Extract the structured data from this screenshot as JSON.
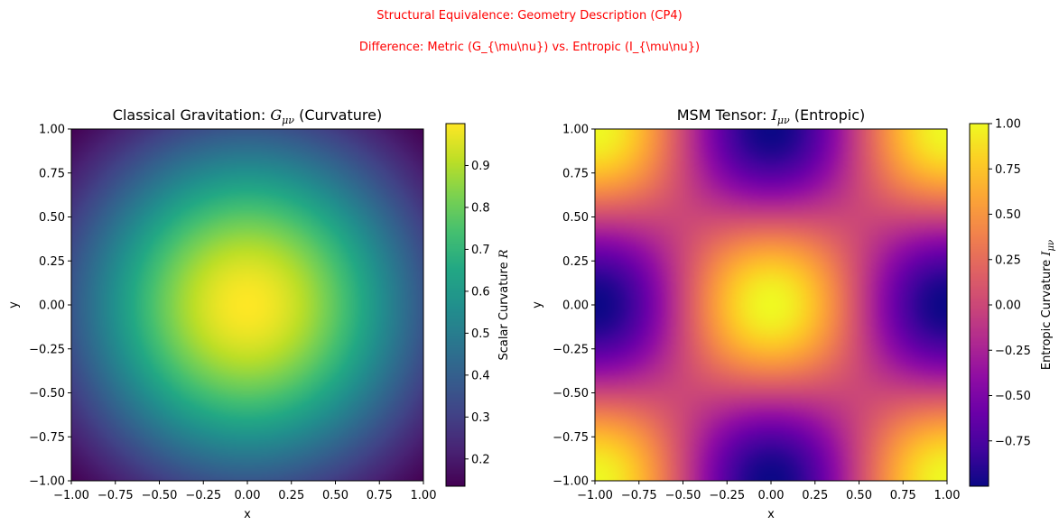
{
  "suptitle": {
    "line1": "Structural Equivalence: Geometry Description (CP4)",
    "line2": "Difference: Metric (G_{\\mu\\nu}) vs. Entropic (I_{\\mu\\nu})",
    "color": "#ff0000"
  },
  "chart_data": [
    {
      "type": "heatmap",
      "title_prefix": "Classical Gravitation: ",
      "title_symbol": "G",
      "title_sub": "μν",
      "title_suffix": " (Curvature)",
      "xlabel": "x",
      "ylabel": "y",
      "xlim": [
        -1.0,
        1.0
      ],
      "ylim": [
        -1.0,
        1.0
      ],
      "xticks": [
        "−1.00",
        "−0.75",
        "−0.50",
        "−0.25",
        "0.00",
        "0.25",
        "0.50",
        "0.75",
        "1.00"
      ],
      "yticks": [
        "−1.00",
        "−0.75",
        "−0.50",
        "−0.25",
        "0.00",
        "0.25",
        "0.50",
        "0.75",
        "1.00"
      ],
      "field": "exp(-(x^2+y^2))",
      "colormap": "viridis",
      "value_range": [
        0.135,
        1.0
      ],
      "colorbar": {
        "label_text": "Scalar Curvature ",
        "label_symbol": "R",
        "ticks": [
          "0.2",
          "0.3",
          "0.4",
          "0.5",
          "0.6",
          "0.7",
          "0.8",
          "0.9"
        ],
        "tick_values": [
          0.2,
          0.3,
          0.4,
          0.5,
          0.6,
          0.7,
          0.8,
          0.9
        ]
      }
    },
    {
      "type": "heatmap",
      "title_prefix": "MSM Tensor: ",
      "title_symbol": "I",
      "title_sub": "μν",
      "title_suffix": " (Entropic)",
      "xlabel": "x",
      "ylabel": "y",
      "xlim": [
        -1.0,
        1.0
      ],
      "ylim": [
        -1.0,
        1.0
      ],
      "xticks": [
        "−1.00",
        "−0.75",
        "−0.50",
        "−0.25",
        "0.00",
        "0.25",
        "0.50",
        "0.75",
        "1.00"
      ],
      "yticks": [
        "−1.00",
        "−0.75",
        "−0.50",
        "−0.25",
        "0.00",
        "0.25",
        "0.50",
        "0.75",
        "1.00"
      ],
      "field": "cos(pi*x)*cos(pi*y)",
      "colormap": "plasma",
      "value_range": [
        -1.0,
        1.0
      ],
      "colorbar": {
        "label_text": "Entropic Curvature ",
        "label_symbol": "I",
        "label_sub": "μν",
        "ticks": [
          "−0.75",
          "−0.50",
          "−0.25",
          "0.00",
          "0.25",
          "0.50",
          "0.75",
          "1.00"
        ],
        "tick_values": [
          -0.75,
          -0.5,
          -0.25,
          0.0,
          0.25,
          0.5,
          0.75,
          1.0
        ]
      }
    }
  ]
}
